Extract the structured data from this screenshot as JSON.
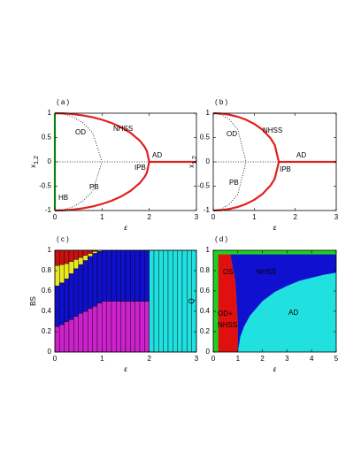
{
  "chart_data": [
    {
      "type": "line",
      "panel_label": "( a )",
      "xlabel": "ε",
      "ylabel": "x",
      "ylabel_subscript": "1,2",
      "xlim": [
        0,
        3
      ],
      "ylim": [
        -1,
        1
      ],
      "xticks": [
        0,
        1,
        2,
        3
      ],
      "yticks": [
        -1,
        -0.5,
        0,
        0.5,
        1
      ],
      "annotations": [
        "OD",
        "NHSS",
        "AD",
        "IPB",
        "PB",
        "HB"
      ],
      "series": [
        {
          "color": "#e02020",
          "style": "solid",
          "x": [
            0,
            0.2,
            0.4,
            0.6,
            0.8,
            1.0,
            1.2,
            1.4,
            1.6,
            1.8,
            1.9,
            1.95,
            2.0,
            2.5,
            3.0
          ],
          "values": [
            1,
            0.995,
            0.98,
            0.954,
            0.917,
            0.866,
            0.8,
            0.714,
            0.6,
            0.436,
            0.312,
            0.222,
            0,
            0,
            0
          ]
        },
        {
          "color": "#e02020",
          "style": "solid",
          "x": [
            0,
            0.2,
            0.4,
            0.6,
            0.8,
            1.0,
            1.2,
            1.4,
            1.6,
            1.8,
            1.9,
            1.95,
            2.0
          ],
          "values": [
            -1,
            -0.995,
            -0.98,
            -0.954,
            -0.917,
            -0.866,
            -0.8,
            -0.714,
            -0.6,
            -0.436,
            -0.312,
            -0.222,
            0
          ]
        },
        {
          "color": "#000000",
          "style": "dotted",
          "x": [
            0,
            0.2,
            0.4,
            0.6,
            0.8,
            1.0
          ],
          "values": [
            1,
            0.98,
            0.917,
            0.8,
            0.6,
            0
          ]
        },
        {
          "color": "#000000",
          "style": "dotted",
          "x": [
            0,
            0.2,
            0.4,
            0.6,
            0.8,
            1.0
          ],
          "values": [
            -1,
            -0.98,
            -0.917,
            -0.8,
            -0.6,
            0
          ]
        },
        {
          "color": "#000000",
          "style": "dotted",
          "x": [
            0,
            2
          ],
          "values": [
            0,
            0
          ]
        },
        {
          "color": "#20d020",
          "style": "solid",
          "x": [
            0,
            0
          ],
          "values": [
            -1,
            1
          ]
        }
      ]
    },
    {
      "type": "line",
      "panel_label": "( b )",
      "xlabel": "ε",
      "ylabel": "x",
      "ylabel_subscript": "1,2",
      "xlim": [
        0,
        3
      ],
      "ylim": [
        -1,
        1
      ],
      "xticks": [
        0,
        1,
        2,
        3
      ],
      "yticks": [
        -1,
        -0.5,
        0,
        0.5,
        1
      ],
      "annotations": [
        "OD",
        "NHSS",
        "AD",
        "IPB",
        "PB"
      ],
      "series": [
        {
          "color": "#e02020",
          "style": "solid",
          "x": [
            0,
            0.2,
            0.4,
            0.6,
            0.8,
            1.0,
            1.2,
            1.4,
            1.5,
            1.6,
            2,
            3
          ],
          "values": [
            1,
            0.992,
            0.968,
            0.927,
            0.866,
            0.781,
            0.661,
            0.484,
            0.348,
            0,
            0,
            0
          ]
        },
        {
          "color": "#e02020",
          "style": "solid",
          "x": [
            0,
            0.2,
            0.4,
            0.6,
            0.8,
            1.0,
            1.2,
            1.4,
            1.5,
            1.6
          ],
          "values": [
            -1,
            -0.992,
            -0.968,
            -0.927,
            -0.866,
            -0.781,
            -0.661,
            -0.484,
            -0.348,
            0
          ]
        },
        {
          "color": "#000000",
          "style": "dotted",
          "x": [
            0,
            0.2,
            0.4,
            0.6,
            0.8
          ],
          "values": [
            1,
            0.968,
            0.866,
            0.661,
            0
          ]
        },
        {
          "color": "#000000",
          "style": "dotted",
          "x": [
            0,
            0.2,
            0.4,
            0.6,
            0.8
          ],
          "values": [
            -1,
            -0.968,
            -0.866,
            -0.661,
            0
          ]
        },
        {
          "color": "#000000",
          "style": "dotted",
          "x": [
            0,
            1.6
          ],
          "values": [
            0,
            0
          ]
        }
      ]
    },
    {
      "type": "bar",
      "panel_label": "( c )",
      "xlabel": "ε",
      "ylabel": "BS",
      "stacked": true,
      "xlim": [
        0,
        3
      ],
      "ylim": [
        0,
        1
      ],
      "xticks": [
        0,
        1,
        2,
        3
      ],
      "yticks": [
        0,
        0.2,
        0.4,
        0.6,
        0.8,
        1
      ],
      "x": [
        0.05,
        0.15,
        0.25,
        0.35,
        0.45,
        0.55,
        0.65,
        0.75,
        0.85,
        0.95,
        1.05,
        1.15,
        1.25,
        1.35,
        1.45,
        1.55,
        1.65,
        1.75,
        1.85,
        1.95,
        2.05,
        2.15,
        2.25,
        2.35,
        2.45,
        2.55,
        2.65,
        2.75,
        2.85,
        2.95
      ],
      "series": [
        {
          "color": "#cc22cc",
          "values": [
            0.25,
            0.27,
            0.3,
            0.32,
            0.35,
            0.38,
            0.4,
            0.43,
            0.45,
            0.48,
            0.5,
            0.5,
            0.5,
            0.5,
            0.5,
            0.5,
            0.5,
            0.5,
            0.5,
            0.5,
            0,
            0,
            0,
            0,
            0,
            0,
            0,
            0,
            0,
            0
          ]
        },
        {
          "color": "#1010cc",
          "values": [
            0.4,
            0.41,
            0.42,
            0.45,
            0.47,
            0.48,
            0.5,
            0.51,
            0.52,
            0.51,
            0.5,
            0.5,
            0.5,
            0.5,
            0.5,
            0.5,
            0.5,
            0.5,
            0.5,
            0.5,
            0,
            0,
            0,
            0,
            0,
            0,
            0,
            0,
            0,
            0
          ]
        },
        {
          "color": "#e8e820",
          "values": [
            0.2,
            0.18,
            0.15,
            0.12,
            0.09,
            0.07,
            0.05,
            0.03,
            0.02,
            0.01,
            0,
            0,
            0,
            0,
            0,
            0,
            0,
            0,
            0,
            0,
            0,
            0,
            0,
            0,
            0,
            0,
            0,
            0,
            0,
            0
          ]
        },
        {
          "color": "#cc1010",
          "values": [
            0.15,
            0.14,
            0.13,
            0.11,
            0.09,
            0.07,
            0.05,
            0.03,
            0.01,
            0,
            0,
            0,
            0,
            0,
            0,
            0,
            0,
            0,
            0,
            0,
            0,
            0,
            0,
            0,
            0,
            0,
            0,
            0,
            0,
            0
          ]
        },
        {
          "color": "#20e0e0",
          "values": [
            0,
            0,
            0,
            0,
            0,
            0,
            0,
            0,
            0,
            0,
            0,
            0,
            0,
            0,
            0,
            0,
            0,
            0,
            0,
            0,
            1,
            1,
            1,
            1,
            1,
            1,
            1,
            1,
            1,
            1
          ]
        }
      ]
    },
    {
      "type": "region",
      "panel_label": "( d )",
      "xlabel": "ε",
      "ylabel": "Q",
      "xlim": [
        0,
        5
      ],
      "ylim": [
        0,
        1
      ],
      "xticks": [
        0,
        1,
        2,
        3,
        4,
        5
      ],
      "yticks": [
        0,
        0.2,
        0.4,
        0.6,
        0.8,
        1
      ],
      "annotations": [
        "OS",
        "NHSS",
        "AD",
        "OD+",
        "NHSS"
      ],
      "regions": [
        {
          "color": "#20d020",
          "x": [
            0,
            5,
            5,
            0
          ],
          "values": [
            0,
            0,
            1,
            1
          ]
        },
        {
          "color": "#e01010",
          "x": [
            0.2,
            1.0,
            1.0,
            0.9,
            0.7,
            0.2
          ],
          "values": [
            0,
            0,
            0.3,
            0.7,
            0.96,
            0.96
          ]
        },
        {
          "color": "#1010d0",
          "x": [
            1.0,
            5,
            5,
            0.7,
            0.9,
            1.0
          ],
          "values": [
            0,
            0,
            0.96,
            0.96,
            0.7,
            0.3
          ]
        },
        {
          "color": "#20e0e0",
          "x": [
            1,
            1.1,
            1.25,
            1.5,
            2,
            2.5,
            3,
            3.5,
            4,
            4.5,
            5,
            5
          ],
          "values": [
            0,
            0.15,
            0.25,
            0.36,
            0.5,
            0.59,
            0.65,
            0.7,
            0.73,
            0.76,
            0.78,
            0
          ]
        }
      ]
    }
  ]
}
